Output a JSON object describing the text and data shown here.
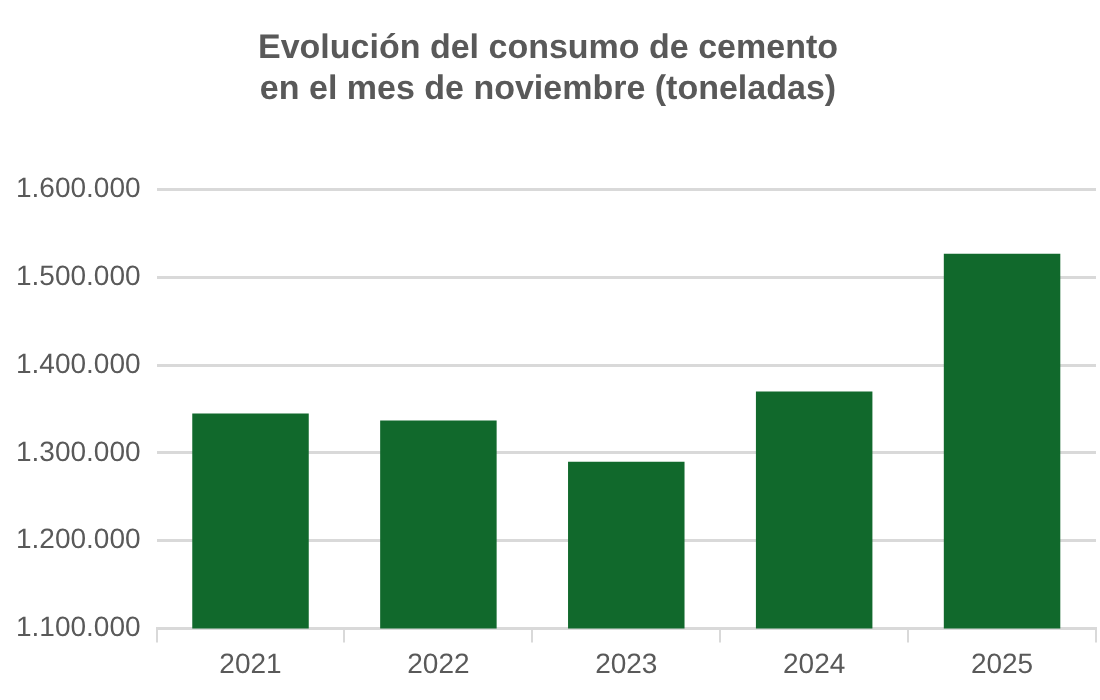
{
  "chart_data": {
    "type": "bar",
    "title": "Evolución del consumo de cemento\nen el mes de noviembre (toneladas)",
    "categories": [
      "2021",
      "2022",
      "2023",
      "2024",
      "2025"
    ],
    "values": [
      1345000,
      1337000,
      1290000,
      1370000,
      1527000
    ],
    "color": "#11692c",
    "ylim": [
      1100000,
      1600000
    ],
    "yticks": [
      {
        "value": 1100000,
        "label": "1.100.000"
      },
      {
        "value": 1200000,
        "label": "1.200.000"
      },
      {
        "value": 1300000,
        "label": "1.300.000"
      },
      {
        "value": 1400000,
        "label": "1.400.000"
      },
      {
        "value": 1500000,
        "label": "1.500.000"
      },
      {
        "value": 1600000,
        "label": "1.600.000"
      }
    ],
    "grid": "y",
    "legend": false
  }
}
